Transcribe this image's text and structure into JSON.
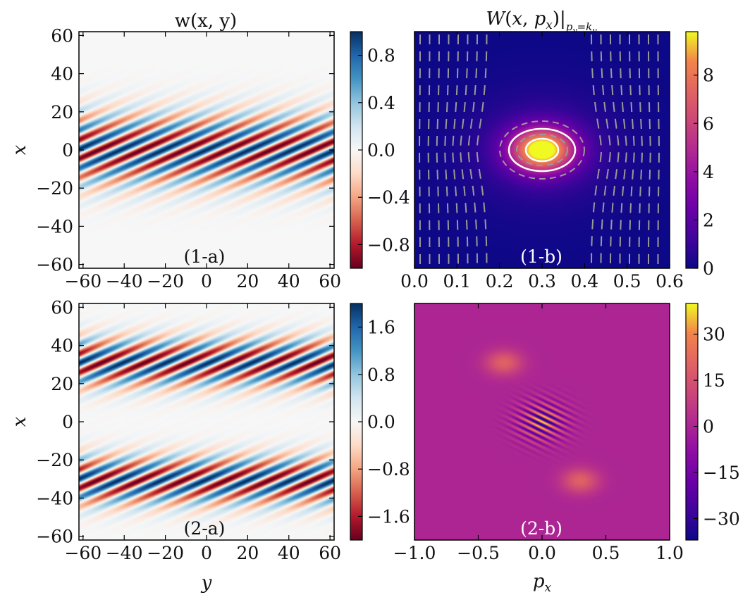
{
  "chart_data": [
    {
      "panel_label": "(1-a)",
      "type": "heatmap",
      "title": "w(x, y)",
      "xlabel": "",
      "ylabel": "x",
      "xlim": [
        -62,
        62
      ],
      "ylim": [
        -62,
        62
      ],
      "xticks": [
        "−60",
        "−40",
        "−20",
        "0",
        "20",
        "40",
        "60"
      ],
      "yticks": [
        "60",
        "40",
        "20",
        "0",
        "−20",
        "−40",
        "−60"
      ],
      "colormap": "RdBu",
      "colorbar": {
        "range": [
          -1.0,
          1.0
        ],
        "ticks": [
          "0.8",
          "0.4",
          "0.0",
          "−0.4",
          "−0.8"
        ]
      },
      "field": {
        "form": "tilted plane wave × Gaussian envelope in x",
        "centers": [
          0
        ],
        "envelope_width": 13,
        "amplitude": 1.0
      }
    },
    {
      "panel_label": "(1-b)",
      "type": "heatmap",
      "title": "W(x, p_x)|_{p_y=k_y}",
      "xlabel": "",
      "ylabel": "",
      "xlim": [
        0.0,
        0.6
      ],
      "ylim": [
        -62,
        62
      ],
      "xticks": [
        "0.0",
        "0.1",
        "0.2",
        "0.3",
        "0.4",
        "0.5",
        "0.6"
      ],
      "colormap": "plasma",
      "colorbar": {
        "range": [
          0,
          9.8
        ],
        "ticks": [
          "8",
          "6",
          "4",
          "2",
          "0"
        ]
      },
      "peak": {
        "p_x": 0.3,
        "x": 0,
        "value": 9.8
      },
      "contours": {
        "solid_white_levels": 2,
        "dashed_gray": true
      }
    },
    {
      "panel_label": "(2-a)",
      "type": "heatmap",
      "title": "",
      "xlabel": "y",
      "ylabel": "x",
      "xlim": [
        -62,
        62
      ],
      "ylim": [
        -62,
        62
      ],
      "xticks": [
        "−60",
        "−40",
        "−20",
        "0",
        "20",
        "40",
        "60"
      ],
      "yticks": [
        "60",
        "40",
        "20",
        "0",
        "−20",
        "−40",
        "−60"
      ],
      "colormap": "RdBu",
      "colorbar": {
        "range": [
          -2.0,
          2.0
        ],
        "ticks": [
          "1.6",
          "0.8",
          "0.0",
          "−0.8",
          "−1.6"
        ]
      },
      "field": {
        "form": "two tilted plane-wave packets",
        "centers": [
          31,
          -31
        ],
        "envelope_width": 9,
        "amplitude": 2.0
      }
    },
    {
      "panel_label": "(2-b)",
      "type": "heatmap",
      "title": "",
      "xlabel": "p_x",
      "ylabel": "",
      "xlim": [
        -1.0,
        1.0
      ],
      "ylim": [
        -62,
        62
      ],
      "xticks": [
        "−1.0",
        "−0.5",
        "0.0",
        "0.5",
        "1.0"
      ],
      "colormap": "plasma",
      "colorbar": {
        "range": [
          -37,
          40
        ],
        "ticks": [
          "30",
          "15",
          "0",
          "−15",
          "−30"
        ]
      },
      "blobs": [
        {
          "p_x": -0.3,
          "x": 31,
          "value": 20
        },
        {
          "p_x": 0.3,
          "x": -31,
          "value": 20
        },
        {
          "p_x": 0.0,
          "x": 0,
          "value": 40,
          "interference_fringes": true
        }
      ]
    }
  ]
}
